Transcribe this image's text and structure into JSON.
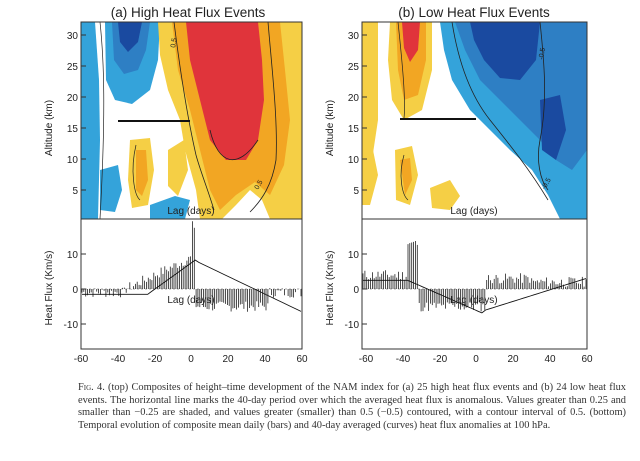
{
  "panels": [
    {
      "title": "(a)  High Heat Flux Events",
      "top_ylabel": "Altitude (km)",
      "bottom_ylabel": "Heat Flux (Km/s)",
      "xlabel": "Lag (days)",
      "top_yticks": [
        "30",
        "25",
        "20",
        "15",
        "10",
        "5"
      ],
      "bottom_yticks": [
        "10",
        "0",
        "-10"
      ],
      "xticks": [
        "-60",
        "-40",
        "-20",
        "0",
        "20",
        "40",
        "60"
      ],
      "contour_labels": [
        "0.5",
        "0.5"
      ]
    },
    {
      "title": "(b)  Low Heat Flux Events",
      "top_ylabel": "Altitude (km)",
      "bottom_ylabel": "Heat Flux (Km/s)",
      "xlabel": "Lag (days)",
      "top_yticks": [
        "30",
        "25",
        "20",
        "15",
        "10",
        "5"
      ],
      "bottom_yticks": [
        "10",
        "0",
        "-10"
      ],
      "xticks": [
        "-60",
        "-40",
        "-20",
        "0",
        "20",
        "40",
        "60"
      ],
      "contour_labels": [
        "-0.5",
        "-0.5"
      ]
    }
  ],
  "caption": {
    "label": "Fig. 4.",
    "text": " (top) Composites of height–time development of the NAM index for (a) 25 high heat flux events and (b) 24 low heat flux events. The horizontal line marks the 40-day period over which the averaged heat flux is anomalous. Values greater than 0.25 and smaller than −0.25 are shaded, and values greater (smaller) than 0.5 (−0.5) contoured, with a contour interval of 0.5. (bottom) Temporal evolution of composite mean daily (bars) and 40-day averaged (curves) heat flux anomalies at 100 hPa."
  },
  "colors": {
    "red": "#e0343b",
    "orange": "#f2a623",
    "yellow": "#f5cf45",
    "dark_blue": "#1a4aa0",
    "mid_blue": "#2e7fc4",
    "light_blue": "#34a3da"
  }
}
